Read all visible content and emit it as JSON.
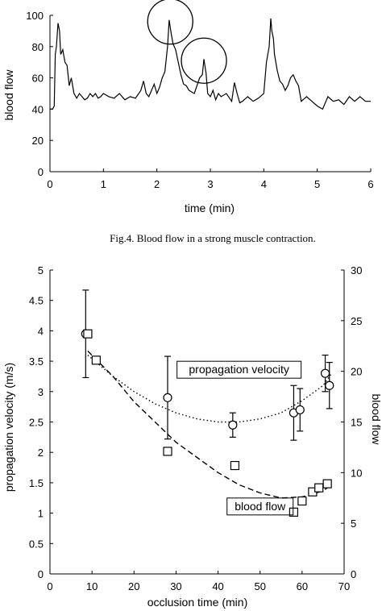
{
  "chart_data": [
    {
      "type": "line",
      "caption": "Fig.4. Blood flow in a strong muscle contraction.",
      "xlabel": "time (min)",
      "ylabel": "blood flow",
      "xlim": [
        0,
        6
      ],
      "ylim": [
        0,
        100
      ],
      "xticks": [
        "0",
        "1",
        "2",
        "3",
        "4",
        "5",
        "6"
      ],
      "yticks": [
        "0",
        "20",
        "40",
        "60",
        "80",
        "100"
      ],
      "grid": false,
      "series": [
        {
          "x": [
            0,
            0.05,
            0.08,
            0.1,
            0.12,
            0.15,
            0.18,
            0.2,
            0.24,
            0.28,
            0.32,
            0.36,
            0.4,
            0.45,
            0.5,
            0.55,
            0.6,
            0.65,
            0.7,
            0.75,
            0.8,
            0.85,
            0.9,
            0.95,
            1.0,
            1.1,
            1.2,
            1.3,
            1.4,
            1.5,
            1.6,
            1.7,
            1.75,
            1.8,
            1.85,
            1.9,
            1.95,
            2.0,
            2.05,
            2.1,
            2.15,
            2.2,
            2.23,
            2.26,
            2.3,
            2.35,
            2.4,
            2.45,
            2.5,
            2.55,
            2.6,
            2.7,
            2.8,
            2.85,
            2.88,
            2.92,
            2.95,
            3.0,
            3.05,
            3.1,
            3.15,
            3.2,
            3.3,
            3.4,
            3.45,
            3.5,
            3.55,
            3.6,
            3.7,
            3.8,
            3.9,
            4.0,
            4.05,
            4.1,
            4.13,
            4.15,
            4.18,
            4.2,
            4.25,
            4.3,
            4.35,
            4.4,
            4.45,
            4.5,
            4.55,
            4.6,
            4.65,
            4.7,
            4.8,
            4.9,
            5.0,
            5.1,
            5.2,
            5.3,
            5.4,
            5.5,
            5.6,
            5.7,
            5.8,
            5.9,
            6.0
          ],
          "y": [
            40,
            40,
            42,
            75,
            80,
            95,
            90,
            75,
            78,
            70,
            68,
            55,
            60,
            50,
            47,
            50,
            48,
            46,
            47,
            50,
            48,
            50,
            47,
            48,
            50,
            48,
            47,
            50,
            46,
            48,
            47,
            52,
            58,
            50,
            48,
            52,
            56,
            50,
            54,
            60,
            64,
            80,
            97,
            90,
            82,
            78,
            70,
            62,
            56,
            55,
            52,
            50,
            60,
            62,
            72,
            63,
            50,
            48,
            52,
            46,
            50,
            48,
            50,
            45,
            57,
            50,
            44,
            45,
            48,
            45,
            47,
            50,
            70,
            80,
            98,
            90,
            85,
            75,
            65,
            58,
            56,
            52,
            55,
            60,
            62,
            58,
            55,
            45,
            48,
            45,
            42,
            40,
            48,
            45,
            46,
            43,
            48,
            45,
            48,
            45,
            45
          ]
        }
      ],
      "annotations": [
        {
          "type": "circle",
          "x": 2.25,
          "y": 96
        },
        {
          "type": "circle",
          "x": 2.88,
          "y": 71
        }
      ]
    },
    {
      "type": "scatter",
      "xlabel": "occlusion time (min)",
      "ylabel": "propagation velocity  (m/s)",
      "y2label": "blood flow",
      "xlim": [
        0,
        70
      ],
      "ylim": [
        0,
        5
      ],
      "y2lim": [
        0,
        30
      ],
      "xticks": [
        "0",
        "10",
        "20",
        "30",
        "40",
        "50",
        "60",
        "70"
      ],
      "yticks": [
        "0",
        "0.5",
        "1",
        "1.5",
        "2",
        "2.5",
        "3",
        "3.5",
        "4",
        "4.5",
        "5"
      ],
      "y2ticks": [
        "0",
        "5",
        "10",
        "15",
        "20",
        "25",
        "30"
      ],
      "grid": false,
      "series": [
        {
          "name": "propagation velocity",
          "marker": "circle",
          "axis": "left",
          "x": [
            8.5,
            28,
            43.5,
            58,
            59.5,
            65.5,
            66.5
          ],
          "y": [
            3.95,
            2.9,
            2.45,
            2.65,
            2.7,
            3.3,
            3.1
          ],
          "err": [
            0.72,
            0.68,
            0.2,
            0.45,
            0.35,
            0.3,
            0.38
          ],
          "trend_x": [
            9,
            15,
            20,
            25,
            30,
            35,
            40,
            45,
            50,
            55,
            60,
            65,
            67
          ],
          "trend_y": [
            3.6,
            3.25,
            3.0,
            2.8,
            2.65,
            2.55,
            2.5,
            2.5,
            2.55,
            2.65,
            2.85,
            3.1,
            3.3
          ]
        },
        {
          "name": "blood flow",
          "marker": "square",
          "axis": "right",
          "x": [
            9,
            11,
            28,
            44,
            58,
            60,
            62.5,
            64,
            66
          ],
          "y": [
            23.7,
            21.1,
            12.1,
            10.7,
            6.1,
            7.2,
            8.1,
            8.5,
            8.9
          ],
          "trend_x": [
            9,
            15,
            20,
            25,
            30,
            35,
            40,
            45,
            50,
            55,
            60,
            65,
            66
          ],
          "trend_y": [
            22,
            19.5,
            17,
            15,
            13,
            11.5,
            10,
            8.8,
            8,
            7.5,
            7.6,
            8.2,
            8.5
          ]
        }
      ],
      "annotations": [
        {
          "text": "propagation velocity",
          "x": 45,
          "y": 3.3,
          "boxed": true
        },
        {
          "text": "blood flow",
          "x": 50,
          "y": 1.05,
          "boxed": true
        }
      ]
    }
  ]
}
